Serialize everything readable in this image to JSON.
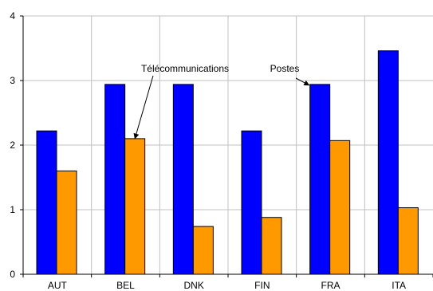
{
  "chart_data": {
    "type": "bar",
    "categories": [
      "AUT",
      "BEL",
      "DNK",
      "FIN",
      "FRA",
      "ITA"
    ],
    "series": [
      {
        "name": "Postes",
        "color": "#0000FF",
        "values": [
          2.22,
          2.94,
          2.94,
          2.22,
          2.94,
          3.46
        ]
      },
      {
        "name": "Télécommunications",
        "color": "#FF9900",
        "values": [
          1.6,
          2.1,
          0.74,
          0.88,
          2.07,
          1.03
        ]
      }
    ],
    "ylim": [
      0,
      4
    ],
    "yticks": [
      "0",
      "1",
      "2",
      "3",
      "4"
    ],
    "grid": true,
    "annotations": [
      {
        "text": "Télécommunications",
        "category": "BEL",
        "series": 1,
        "value": 2.1
      },
      {
        "text": "Postes",
        "category": "FRA",
        "series": 0,
        "value": 2.94
      }
    ]
  }
}
